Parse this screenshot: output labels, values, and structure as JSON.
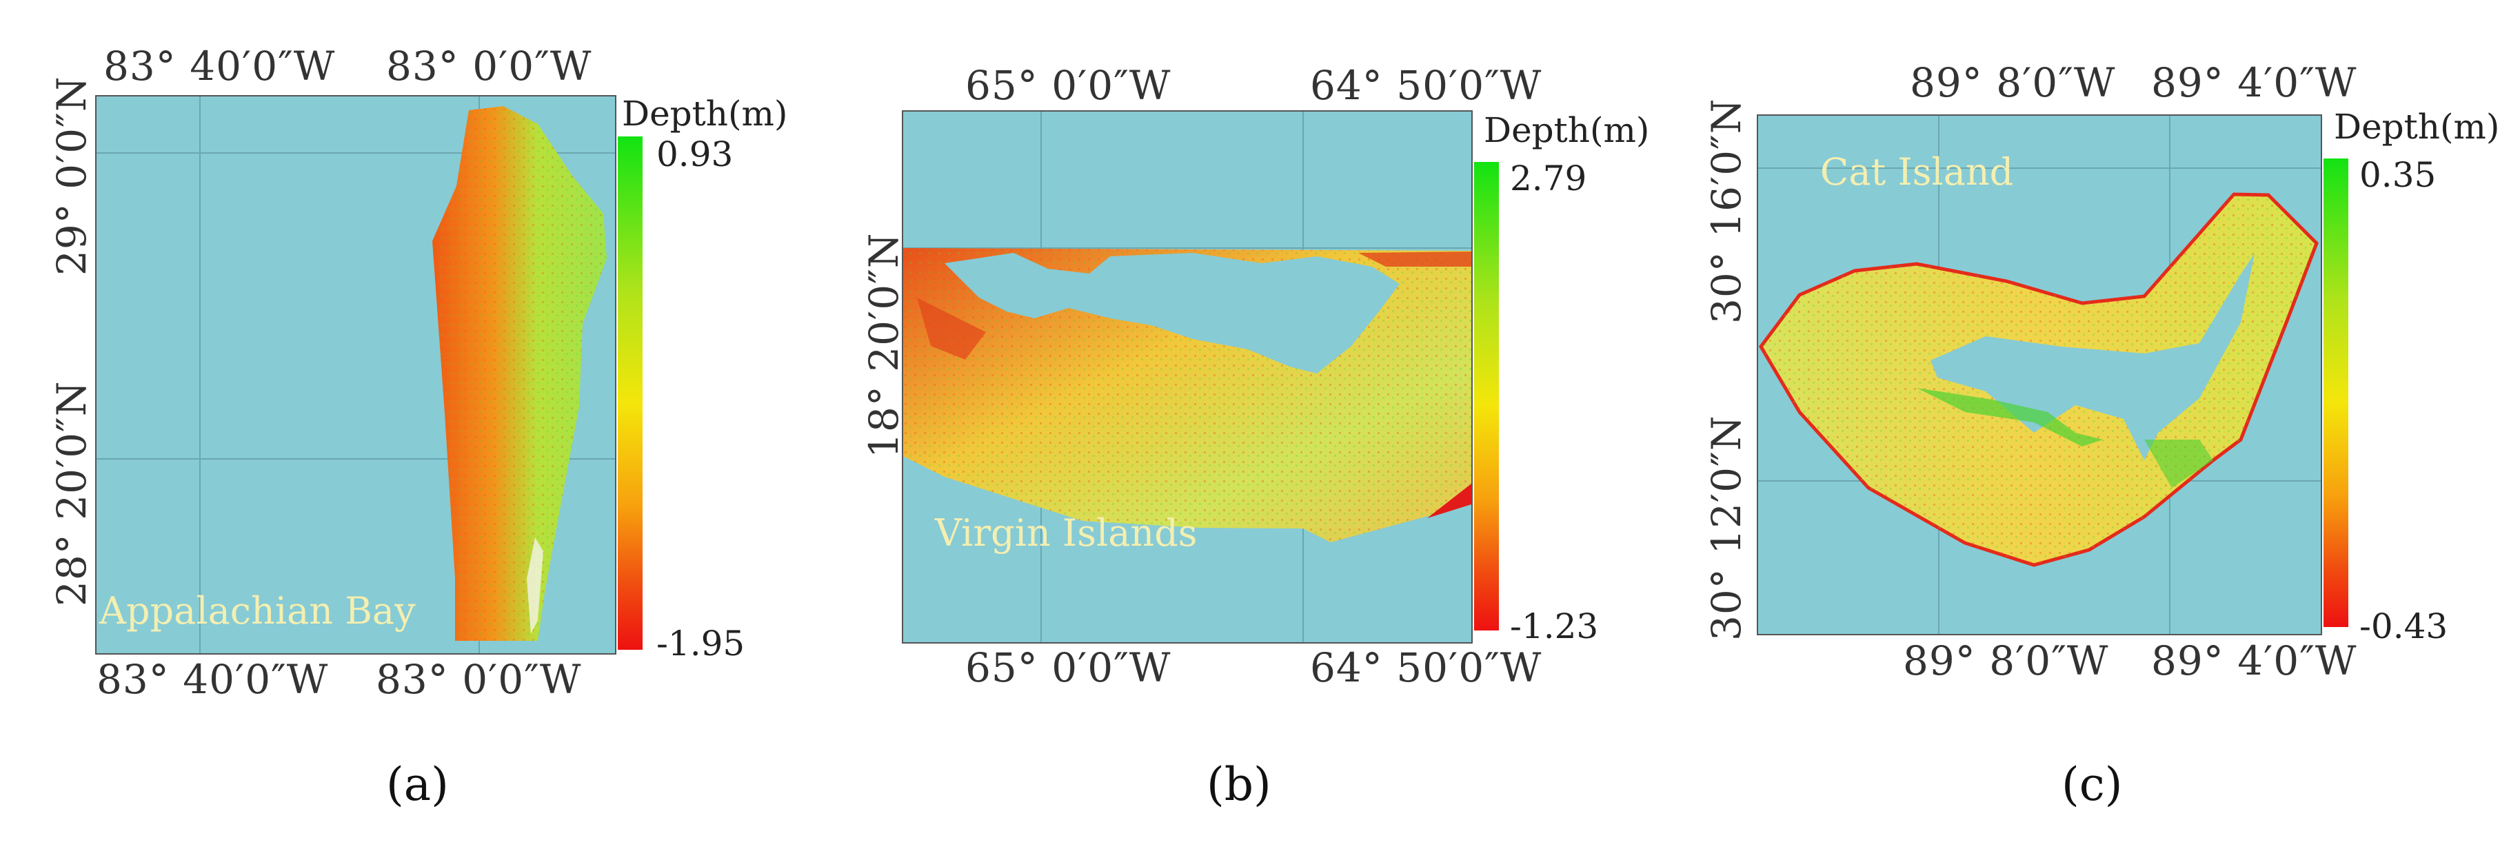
{
  "colorbar_title": "Depth(m)",
  "colors": {
    "water": "#87cbd5",
    "max": "#12e312",
    "mid": "#f4e60a",
    "min": "#ee1111"
  },
  "panels": [
    {
      "caption": "(a)",
      "region": "Appalachian Bay",
      "top_ticks": [
        "83° 40′0″W",
        "83° 0′0″W"
      ],
      "bottom_ticks": [
        "83° 40′0″W",
        "83° 0′0″W"
      ],
      "left_ticks": [
        "29° 0′0″N",
        "28° 20′0″N"
      ],
      "depth_max": "0.93",
      "depth_min": "-1.95"
    },
    {
      "caption": "(b)",
      "region": "Virgin Islands",
      "top_ticks": [
        "65° 0′0″W",
        "64° 50′0″W"
      ],
      "bottom_ticks": [
        "65° 0′0″W",
        "64° 50′0″W"
      ],
      "left_ticks": [
        "18° 20′0″N"
      ],
      "depth_max": "2.79",
      "depth_min": "-1.23"
    },
    {
      "caption": "(c)",
      "region": "Cat Island",
      "top_ticks": [
        "89° 8′0″W",
        "89° 4′0″W"
      ],
      "bottom_ticks": [
        "89° 8′0″W",
        "89° 4′0″W"
      ],
      "left_ticks": [
        "30° 16′0″N",
        "30° 12′0″N"
      ],
      "depth_max": "0.35",
      "depth_min": "-0.43"
    }
  ]
}
